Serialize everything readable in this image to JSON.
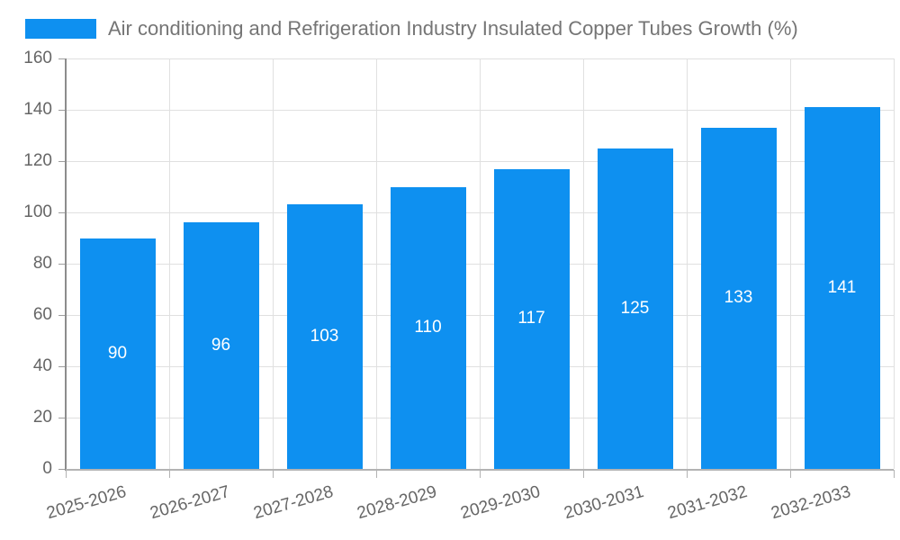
{
  "chart_data": {
    "type": "bar",
    "title": "Air conditioning and Refrigeration Industry Insulated Copper Tubes Growth (%)",
    "categories": [
      "2025-2026",
      "2026-2027",
      "2027-2028",
      "2028-2029",
      "2029-2030",
      "2030-2031",
      "2031-2032",
      "2032-2033"
    ],
    "values": [
      90,
      96,
      103,
      110,
      117,
      125,
      133,
      141
    ],
    "xlabel": "",
    "ylabel": "",
    "ylim": [
      0,
      160
    ],
    "ytick_step": 20,
    "yticks": [
      0,
      20,
      40,
      60,
      80,
      100,
      120,
      140,
      160
    ],
    "grid": true,
    "legend_position": "top-left",
    "value_labels": "centered-inside-bars-white"
  },
  "colors": {
    "bar": "#0e90f0",
    "title_text": "#757575",
    "axis_text": "#666666",
    "grid_line": "#e0e0e0",
    "y_axis_line": "#8c8c8c",
    "x_axis_line": "#b3b3b3",
    "value_label": "#ffffff"
  }
}
